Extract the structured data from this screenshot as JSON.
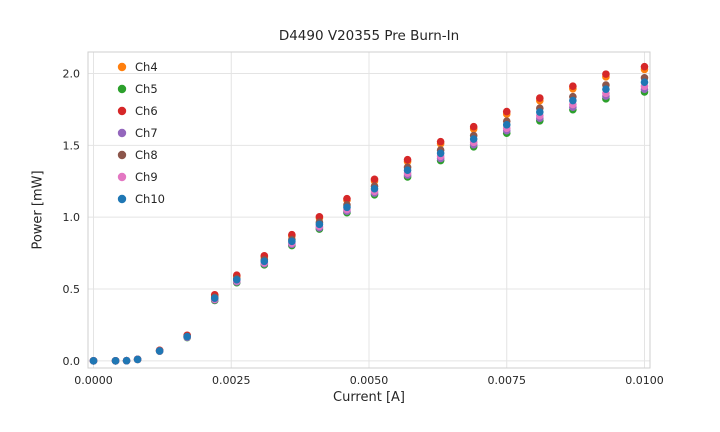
{
  "figure": {
    "title": "D4490 V20355 Pre Burn-In",
    "xlabel": "Current [A]",
    "ylabel": "Power [mW]"
  },
  "chart_data": {
    "type": "scatter",
    "title": "D4490 V20355 Pre Burn-In",
    "xlabel": "Current [A]",
    "ylabel": "Power [mW]",
    "xlim": [
      -0.0001,
      0.0101
    ],
    "ylim": [
      -0.05,
      2.15
    ],
    "xticks": [
      "0.0000",
      "0.0025",
      "0.0050",
      "0.0075",
      "0.0100"
    ],
    "xtick_values": [
      0.0,
      0.0025,
      0.005,
      0.0075,
      0.01
    ],
    "yticks": [
      "0.0",
      "0.5",
      "1.0",
      "1.5",
      "2.0"
    ],
    "ytick_values": [
      0.0,
      0.5,
      1.0,
      1.5,
      2.0
    ],
    "grid": true,
    "legend_position": "upper-left",
    "background_color": "#ffffff",
    "x": [
      0.0,
      0.0004,
      0.0006,
      0.0008,
      0.0012,
      0.0017,
      0.0022,
      0.0026,
      0.0031,
      0.0036,
      0.0041,
      0.0046,
      0.0051,
      0.0057,
      0.0063,
      0.0069,
      0.0075,
      0.0081,
      0.0087,
      0.0093,
      0.01
    ],
    "series": [
      {
        "name": "Ch4",
        "color": "#ff7f0e",
        "values": [
          0,
          0,
          0.001,
          0.01,
          0.072,
          0.176,
          0.455,
          0.59,
          0.724,
          0.869,
          0.994,
          1.118,
          1.252,
          1.387,
          1.511,
          1.614,
          1.718,
          1.811,
          1.894,
          1.977,
          2.029
        ]
      },
      {
        "name": "Ch5",
        "color": "#2ca02c",
        "values": [
          0,
          0,
          0.001,
          0.01,
          0.067,
          0.162,
          0.42,
          0.544,
          0.668,
          0.802,
          0.917,
          1.031,
          1.156,
          1.28,
          1.394,
          1.49,
          1.585,
          1.671,
          1.748,
          1.824,
          1.872
        ]
      },
      {
        "name": "Ch6",
        "color": "#d62728",
        "values": [
          0,
          0,
          0.001,
          0.011,
          0.073,
          0.178,
          0.46,
          0.596,
          0.731,
          0.878,
          1.003,
          1.129,
          1.264,
          1.4,
          1.526,
          1.63,
          1.735,
          1.829,
          1.912,
          1.996,
          2.048
        ]
      },
      {
        "name": "Ch7",
        "color": "#9467bd",
        "values": [
          0,
          0,
          0.001,
          0.01,
          0.068,
          0.164,
          0.425,
          0.55,
          0.676,
          0.811,
          0.926,
          1.042,
          1.168,
          1.293,
          1.409,
          1.505,
          1.602,
          1.689,
          1.766,
          1.843,
          1.891
        ]
      },
      {
        "name": "Ch8",
        "color": "#8c564b",
        "values": [
          0,
          0,
          0.001,
          0.01,
          0.07,
          0.171,
          0.442,
          0.573,
          0.703,
          0.844,
          0.965,
          1.085,
          1.216,
          1.347,
          1.467,
          1.568,
          1.668,
          1.759,
          1.839,
          1.92,
          1.97
        ]
      },
      {
        "name": "Ch9",
        "color": "#e377c2",
        "values": [
          0,
          0,
          0.001,
          0.01,
          0.068,
          0.166,
          0.429,
          0.556,
          0.682,
          0.819,
          0.936,
          1.053,
          1.18,
          1.307,
          1.424,
          1.521,
          1.619,
          1.706,
          1.784,
          1.862,
          1.911
        ]
      },
      {
        "name": "Ch10",
        "color": "#1f77b4",
        "values": [
          0,
          0,
          0.001,
          0.01,
          0.069,
          0.168,
          0.436,
          0.564,
          0.693,
          0.832,
          0.95,
          1.069,
          1.198,
          1.327,
          1.445,
          1.544,
          1.643,
          1.732,
          1.812,
          1.891,
          1.94
        ]
      }
    ]
  }
}
